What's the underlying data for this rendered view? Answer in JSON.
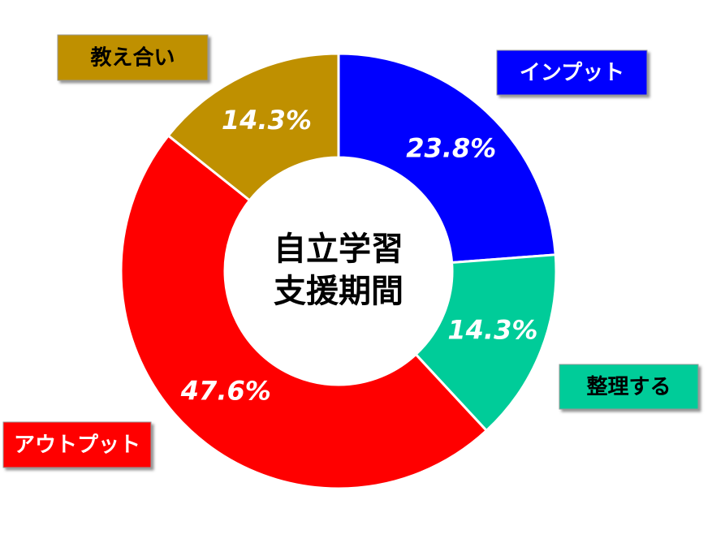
{
  "chart_data": {
    "type": "donut",
    "center_text": [
      "自立学習",
      "支援期間"
    ],
    "categories": [
      "インプット",
      "整理する",
      "アウトプット",
      "教え合い"
    ],
    "values": [
      23.8,
      14.3,
      47.6,
      14.3
    ],
    "value_labels": [
      "23.8%",
      "14.3%",
      "47.6%",
      "14.3%"
    ],
    "colors": [
      "#0000ff",
      "#00cc99",
      "#ff0000",
      "#bf9000"
    ]
  }
}
